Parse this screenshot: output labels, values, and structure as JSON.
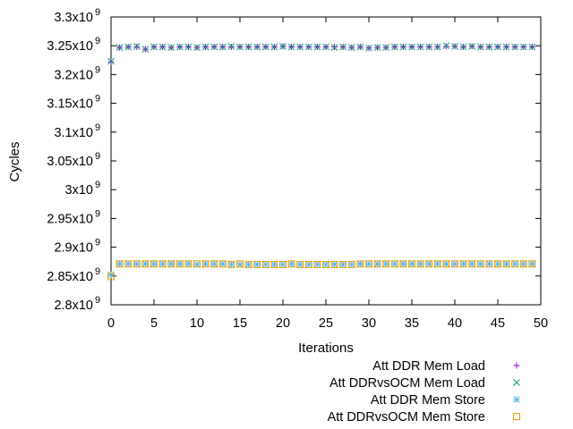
{
  "chart_data": {
    "type": "scatter",
    "xlabel": "Iterations",
    "ylabel": "Cycles",
    "xlim": [
      0,
      50
    ],
    "ylim": [
      2800000000.0,
      3300000000.0
    ],
    "x_ticks": [
      0,
      5,
      10,
      15,
      20,
      25,
      30,
      35,
      40,
      45,
      50
    ],
    "x_tick_labels": [
      "0",
      "5",
      "10",
      "15",
      "20",
      "25",
      "30",
      "35",
      "40",
      "45",
      "50"
    ],
    "y_ticks": [
      2800000000.0,
      2850000000.0,
      2900000000.0,
      2950000000.0,
      3000000000.0,
      3050000000.0,
      3100000000.0,
      3150000000.0,
      3200000000.0,
      3250000000.0,
      3300000000.0
    ],
    "y_tick_labels": [
      {
        "mantissa": "2.8x10",
        "exp": "9"
      },
      {
        "mantissa": "2.85x10",
        "exp": "9"
      },
      {
        "mantissa": "2.9x10",
        "exp": "9"
      },
      {
        "mantissa": "2.95x10",
        "exp": "9"
      },
      {
        "mantissa": "3x10",
        "exp": "9"
      },
      {
        "mantissa": "3.05x10",
        "exp": "9"
      },
      {
        "mantissa": "3.1x10",
        "exp": "9"
      },
      {
        "mantissa": "3.15x10",
        "exp": "9"
      },
      {
        "mantissa": "3.2x10",
        "exp": "9"
      },
      {
        "mantissa": "3.25x10",
        "exp": "9"
      },
      {
        "mantissa": "3.3x10",
        "exp": "9"
      }
    ],
    "grid": false,
    "legend_position": "bottom-right",
    "series": [
      {
        "name": "Att DDR Mem Load",
        "marker": "plus",
        "color": "#9400d3",
        "x": [
          0,
          1,
          2,
          3,
          4,
          5,
          6,
          7,
          8,
          9,
          10,
          11,
          12,
          13,
          14,
          15,
          16,
          17,
          18,
          19,
          20,
          21,
          22,
          23,
          24,
          25,
          26,
          27,
          28,
          29,
          30,
          31,
          32,
          33,
          34,
          35,
          36,
          37,
          38,
          39,
          40,
          41,
          42,
          43,
          44,
          45,
          46,
          47,
          48,
          49
        ],
        "y": [
          3222000000.0,
          3247000000.0,
          3248000000.0,
          3248000000.0,
          3244000000.0,
          3248000000.0,
          3248000000.0,
          3247000000.0,
          3248000000.0,
          3248000000.0,
          3247000000.0,
          3248000000.0,
          3248000000.0,
          3248000000.0,
          3248000000.0,
          3248000000.0,
          3248000000.0,
          3248000000.0,
          3248000000.0,
          3248000000.0,
          3249000000.0,
          3248000000.0,
          3248000000.0,
          3248000000.0,
          3248000000.0,
          3248000000.0,
          3248000000.0,
          3248000000.0,
          3247000000.0,
          3248000000.0,
          3246000000.0,
          3247000000.0,
          3247000000.0,
          3248000000.0,
          3248000000.0,
          3248000000.0,
          3248000000.0,
          3248000000.0,
          3248000000.0,
          3249000000.0,
          3249000000.0,
          3248000000.0,
          3249000000.0,
          3248000000.0,
          3248000000.0,
          3248000000.0,
          3248000000.0,
          3248000000.0,
          3248000000.0,
          3248000000.0
        ]
      },
      {
        "name": "Att DDRvsOCM Mem Load",
        "marker": "cross",
        "color": "#009e73",
        "x": [
          0,
          1,
          2,
          3,
          4,
          5,
          6,
          7,
          8,
          9,
          10,
          11,
          12,
          13,
          14,
          15,
          16,
          17,
          18,
          19,
          20,
          21,
          22,
          23,
          24,
          25,
          26,
          27,
          28,
          29,
          30,
          31,
          32,
          33,
          34,
          35,
          36,
          37,
          38,
          39,
          40,
          41,
          42,
          43,
          44,
          45,
          46,
          47,
          48,
          49
        ],
        "y": [
          3223000000.0,
          3247000000.0,
          3248000000.0,
          3249000000.0,
          3244000000.0,
          3248000000.0,
          3248000000.0,
          3247000000.0,
          3248000000.0,
          3248000000.0,
          3247000000.0,
          3248000000.0,
          3248000000.0,
          3248000000.0,
          3249000000.0,
          3248000000.0,
          3248000000.0,
          3248000000.0,
          3248000000.0,
          3248000000.0,
          3249000000.0,
          3248000000.0,
          3248000000.0,
          3248000000.0,
          3248000000.0,
          3248000000.0,
          3247000000.0,
          3248000000.0,
          3247000000.0,
          3248000000.0,
          3246000000.0,
          3247000000.0,
          3247000000.0,
          3248000000.0,
          3248000000.0,
          3248000000.0,
          3248000000.0,
          3248000000.0,
          3248000000.0,
          3250000000.0,
          3249000000.0,
          3248000000.0,
          3249000000.0,
          3248000000.0,
          3248000000.0,
          3248000000.0,
          3248000000.0,
          3248000000.0,
          3248000000.0,
          3248000000.0
        ]
      },
      {
        "name": "Att DDR Mem Store",
        "marker": "star",
        "color": "#56b4e9",
        "x": [
          0,
          1,
          2,
          3,
          4,
          5,
          6,
          7,
          8,
          9,
          10,
          11,
          12,
          13,
          14,
          15,
          16,
          17,
          18,
          19,
          20,
          21,
          22,
          23,
          24,
          25,
          26,
          27,
          28,
          29,
          30,
          31,
          32,
          33,
          34,
          35,
          36,
          37,
          38,
          39,
          40,
          41,
          42,
          43,
          44,
          45,
          46,
          47,
          48,
          49
        ],
        "y": [
          2852000000.0,
          2871000000.0,
          2871000000.0,
          2871000000.0,
          2871000000.0,
          2871000000.0,
          2871000000.0,
          2871000000.0,
          2871000000.0,
          2871000000.0,
          2870000000.0,
          2871000000.0,
          2871000000.0,
          2871000000.0,
          2870000000.0,
          2870000000.0,
          2870000000.0,
          2870000000.0,
          2870000000.0,
          2870000000.0,
          2870000000.0,
          2871000000.0,
          2870000000.0,
          2870000000.0,
          2870000000.0,
          2870000000.0,
          2870000000.0,
          2870000000.0,
          2870000000.0,
          2871000000.0,
          2871000000.0,
          2871000000.0,
          2871000000.0,
          2871000000.0,
          2871000000.0,
          2871000000.0,
          2871000000.0,
          2871000000.0,
          2871000000.0,
          2871000000.0,
          2871000000.0,
          2871000000.0,
          2871000000.0,
          2871000000.0,
          2871000000.0,
          2871000000.0,
          2871000000.0,
          2871000000.0,
          2871000000.0,
          2871000000.0
        ]
      },
      {
        "name": "Att DDRvsOCM Mem Store",
        "marker": "square",
        "color": "#e69f00",
        "x": [
          0,
          1,
          2,
          3,
          4,
          5,
          6,
          7,
          8,
          9,
          10,
          11,
          12,
          13,
          14,
          15,
          16,
          17,
          18,
          19,
          20,
          21,
          22,
          23,
          24,
          25,
          26,
          27,
          28,
          29,
          30,
          31,
          32,
          33,
          34,
          35,
          36,
          37,
          38,
          39,
          40,
          41,
          42,
          43,
          44,
          45,
          46,
          47,
          48,
          49
        ],
        "y": [
          2849000000.0,
          2871000000.0,
          2871000000.0,
          2871000000.0,
          2871000000.0,
          2871000000.0,
          2871000000.0,
          2871000000.0,
          2871000000.0,
          2871000000.0,
          2871000000.0,
          2871000000.0,
          2871000000.0,
          2871000000.0,
          2870000000.0,
          2871000000.0,
          2870000000.0,
          2870000000.0,
          2870000000.0,
          2870000000.0,
          2870000000.0,
          2871000000.0,
          2870000000.0,
          2870000000.0,
          2870000000.0,
          2870000000.0,
          2870000000.0,
          2870000000.0,
          2870000000.0,
          2871000000.0,
          2871000000.0,
          2871000000.0,
          2871000000.0,
          2871000000.0,
          2871000000.0,
          2871000000.0,
          2871000000.0,
          2871000000.0,
          2871000000.0,
          2871000000.0,
          2871000000.0,
          2871000000.0,
          2871000000.0,
          2871000000.0,
          2871000000.0,
          2871000000.0,
          2871000000.0,
          2871000000.0,
          2871000000.0,
          2871000000.0
        ]
      }
    ]
  }
}
